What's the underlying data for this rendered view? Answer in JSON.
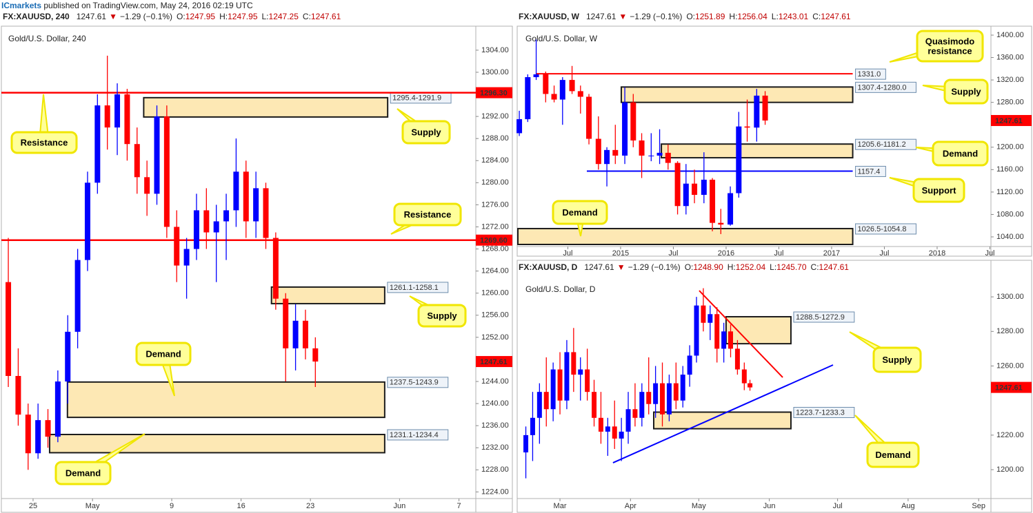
{
  "header": {
    "publisher": "ICmarkets",
    "published": " published on TradingView.com, May 24, 2016 02:19 UTC"
  },
  "chart_data": [
    {
      "type": "candlestick",
      "title": "Gold/U.S. Dollar, 240",
      "info": {
        "symbol": "FX:XAUUSD, 240",
        "price": "1247.61",
        "arrow": "▼",
        "change": "−1.29 (−0.1%)",
        "ohlc": [
          [
            "O:",
            "1247.95"
          ],
          [
            "H:",
            "1247.95"
          ],
          [
            "L:",
            "1247.25"
          ],
          [
            "C:",
            "1247.61"
          ]
        ]
      },
      "up_color": "#0000ff",
      "down_color": "#ff0000",
      "xlim": [
        112.8,
        160.7
      ],
      "xticks": [
        {
          "value": 116,
          "label": "25"
        },
        {
          "value": 122,
          "label": "May"
        },
        {
          "value": 130,
          "label": "9"
        },
        {
          "value": 137,
          "label": "16"
        },
        {
          "value": 144,
          "label": "23"
        },
        {
          "value": 153,
          "label": "Jun"
        },
        {
          "value": 159,
          "label": "7"
        }
      ],
      "ylim": [
        1222.8,
        1308.1
      ],
      "yticks": [
        {
          "value": 1304,
          "label": "1304.00"
        },
        {
          "value": 1300,
          "label": "1300.00"
        },
        {
          "value": 1292,
          "label": "1292.00"
        },
        {
          "value": 1288,
          "label": "1288.00"
        },
        {
          "value": 1284,
          "label": "1284.00"
        },
        {
          "value": 1280,
          "label": "1280.00"
        },
        {
          "value": 1276,
          "label": "1276.00"
        },
        {
          "value": 1272,
          "label": "1272.00"
        },
        {
          "value": 1268,
          "label": "1268.00"
        },
        {
          "value": 1264,
          "label": "1264.00"
        },
        {
          "value": 1260,
          "label": "1260.00"
        },
        {
          "value": 1256,
          "label": "1256.00"
        },
        {
          "value": 1252,
          "label": "1252.00"
        },
        {
          "value": 1244,
          "label": "1244.00"
        },
        {
          "value": 1240,
          "label": "1240.00"
        },
        {
          "value": 1236,
          "label": "1236.00"
        },
        {
          "value": 1232,
          "label": "1232.00"
        },
        {
          "value": 1228,
          "label": "1228.00"
        },
        {
          "value": 1224,
          "label": "1224.00"
        }
      ],
      "candles": {
        "x": [
          113.5,
          114.5,
          115.5,
          116.5,
          117.5,
          118.5,
          119.5,
          120.5,
          121.5,
          122.5,
          123.5,
          124.5,
          125.5,
          126.5,
          127.5,
          128.5,
          129.5,
          130.5,
          131.5,
          132.5,
          133.5,
          134.5,
          135.5,
          136.5,
          137.5,
          138.5,
          139.5,
          140.5,
          141.5,
          142.5,
          143.5,
          144.5
        ],
        "open": [
          1262,
          1245,
          1238,
          1231,
          1237,
          1234,
          1244,
          1253,
          1266,
          1280,
          1294,
          1290,
          1296,
          1287,
          1281,
          1278,
          1292,
          1272,
          1265,
          1268,
          1275,
          1271,
          1273,
          1275,
          1282,
          1273,
          1279,
          1270,
          1259,
          1250,
          1255,
          1250
        ],
        "high": [
          1270,
          1250,
          1240,
          1240,
          1239,
          1246,
          1256,
          1268,
          1282,
          1296,
          1303,
          1298,
          1297,
          1290,
          1284,
          1294,
          1294,
          1275,
          1270,
          1278,
          1279,
          1276,
          1278,
          1288,
          1284,
          1282,
          1280,
          1271,
          1260,
          1258,
          1257,
          1252
        ],
        "low": [
          1243,
          1236,
          1228,
          1230,
          1232,
          1233,
          1240,
          1250,
          1264,
          1278,
          1286,
          1285,
          1284,
          1278,
          1274,
          1276,
          1270,
          1262,
          1259,
          1266,
          1268,
          1262,
          1266,
          1272,
          1270,
          1270,
          1268,
          1257,
          1244,
          1246,
          1248,
          1243
        ],
        "close": [
          1245,
          1238,
          1231,
          1237,
          1234,
          1244,
          1253,
          1266,
          1280,
          1294,
          1290,
          1296,
          1287,
          1281,
          1278,
          1292,
          1272,
          1265,
          1268,
          1275,
          1271,
          1273,
          1275,
          1282,
          1273,
          1279,
          1270,
          1259,
          1250,
          1255,
          1250,
          1247.61
        ]
      },
      "zones": [
        {
          "label": "1295.4-1291.9",
          "high": 1295.4,
          "low": 1291.9,
          "x0": 127.1,
          "x1": 151.8
        },
        {
          "label": "1261.1-1258.1",
          "high": 1261.1,
          "low": 1258.1,
          "x0": 140,
          "x1": 151.5
        },
        {
          "label": "1237.5-1243.9",
          "high": 1243.9,
          "low": 1237.5,
          "x0": 119.4,
          "x1": 151.5
        },
        {
          "label": "1231.1-1234.4",
          "high": 1234.4,
          "low": 1231.1,
          "x0": 117.6,
          "x1": 151.5
        }
      ],
      "levels": [
        {
          "value": 1296.3,
          "label": "1296.30",
          "color": "#ff0000"
        },
        {
          "value": 1269.6,
          "label": "1269.60",
          "color": "#ff0000"
        }
      ],
      "last": {
        "value": 1247.61,
        "label": "1247.61"
      },
      "callouts": [
        [
          "Resistance"
        ],
        [
          "Supply"
        ],
        [
          "Resistance"
        ],
        [
          "Supply"
        ],
        [
          "Demand"
        ],
        [
          "Demand"
        ]
      ]
    },
    {
      "type": "candlestick",
      "title": "Gold/U.S. Dollar, W",
      "info": {
        "symbol": "FX:XAUUSD, W",
        "price": "1247.61",
        "arrow": "▼",
        "change": "−1.29 (−0.1%)",
        "ohlc": [
          [
            "O:",
            "1251.89"
          ],
          [
            "H:",
            "1256.04"
          ],
          [
            "L:",
            "1243.01"
          ],
          [
            "C:",
            "1247.61"
          ]
        ]
      },
      "up_color": "#0000ff",
      "down_color": "#ff0000",
      "xlim": [
        2014.02,
        2018.51
      ],
      "xticks": [
        {
          "value": 2014.5,
          "label": "Jul"
        },
        2015,
        {
          "value": 2015.5,
          "label": "Jul"
        },
        2016,
        {
          "value": 2016.5,
          "label": "Jul"
        },
        2017,
        {
          "value": 2017.5,
          "label": "Jul"
        },
        2018,
        {
          "value": 2018.5,
          "label": "Jul"
        }
      ],
      "ylim": [
        1022.8,
        1413.5
      ],
      "yticks": [
        {
          "value": 1400,
          "label": "1400.00"
        },
        {
          "value": 1360,
          "label": "1360.00"
        },
        {
          "value": 1320,
          "label": "1320.00"
        },
        {
          "value": 1280,
          "label": "1280.00"
        },
        {
          "value": 1200,
          "label": "1200.00"
        },
        {
          "value": 1160,
          "label": "1160.00"
        },
        {
          "value": 1120,
          "label": "1120.00"
        },
        {
          "value": 1080,
          "label": "1080.00"
        },
        {
          "value": 1040,
          "label": "1040.00"
        }
      ],
      "candles": {
        "x": [
          2014.04,
          2014.12,
          2014.2,
          2014.29,
          2014.37,
          2014.45,
          2014.54,
          2014.62,
          2014.7,
          2014.79,
          2014.87,
          2014.95,
          2015.04,
          2015.12,
          2015.2,
          2015.29,
          2015.37,
          2015.45,
          2015.54,
          2015.62,
          2015.7,
          2015.79,
          2015.87,
          2015.95,
          2016.04,
          2016.12,
          2016.2,
          2016.29,
          2016.37
        ],
        "open": [
          1225,
          1250,
          1325,
          1330,
          1295,
          1285,
          1320,
          1300,
          1290,
          1215,
          1170,
          1195,
          1185,
          1280,
          1212,
          1185,
          1185,
          1190,
          1172,
          1095,
          1135,
          1115,
          1142,
          1065,
          1062,
          1118,
          1237,
          1235,
          1292
        ],
        "high": [
          1265,
          1330,
          1392,
          1335,
          1310,
          1325,
          1345,
          1310,
          1295,
          1255,
          1200,
          1240,
          1307,
          1295,
          1225,
          1225,
          1232,
          1205,
          1175,
          1170,
          1160,
          1191,
          1145,
          1090,
          1130,
          1263,
          1285,
          1304,
          1300
        ],
        "low": [
          1220,
          1245,
          1320,
          1280,
          1280,
          1240,
          1295,
          1260,
          1205,
          1160,
          1130,
          1170,
          1170,
          1200,
          1145,
          1175,
          1170,
          1160,
          1080,
          1080,
          1100,
          1100,
          1050,
          1045,
          1060,
          1110,
          1210,
          1210,
          1240
        ],
        "close": [
          1250,
          1325,
          1330,
          1295,
          1285,
          1320,
          1300,
          1290,
          1215,
          1170,
          1195,
          1185,
          1280,
          1212,
          1185,
          1185,
          1190,
          1172,
          1095,
          1135,
          1115,
          1142,
          1065,
          1062,
          1118,
          1237,
          1235,
          1292,
          1247.61
        ]
      },
      "zones": [
        {
          "label": "1307.4-1280.0",
          "high": 1307.4,
          "low": 1280,
          "x0": 2015,
          "x1": 2017.2
        },
        {
          "label": "1205.6-1181.2",
          "high": 1205.6,
          "low": 1181.2,
          "x0": 2015.38,
          "x1": 2017.2
        },
        {
          "label": "1026.5-1054.8",
          "high": 1054.8,
          "low": 1026.5,
          "x0": 2014.02,
          "x1": 2017.2
        }
      ],
      "levels": [
        {
          "value": 1331,
          "label": "1331.0",
          "color": "#ff0000",
          "x0": 2014.2,
          "x1": 2017.2
        },
        {
          "value": 1157.4,
          "label": "1157.4",
          "color": "#0000ff",
          "x0": 2014.68,
          "x1": 2017.2
        }
      ],
      "last": {
        "value": 1247.61,
        "label": "1247.61"
      },
      "callouts": [
        [
          "Quasimodo",
          "resistance"
        ],
        [
          "Supply"
        ],
        [
          "Demand"
        ],
        [
          "Support"
        ],
        [
          "Demand"
        ]
      ]
    },
    {
      "type": "candlestick",
      "title": "Gold/U.S. Dollar, D",
      "info": {
        "symbol": "FX:XAUUSD, D",
        "price": "1247.61",
        "arrow": "▼",
        "change": "−1.29 (−0.1%)",
        "ohlc": [
          [
            "O:",
            "1248.90"
          ],
          [
            "H:",
            "1252.04"
          ],
          [
            "L:",
            "1245.70"
          ],
          [
            "C:",
            "1247.61"
          ]
        ]
      },
      "up_color": "#0000ff",
      "down_color": "#ff0000",
      "xlim": [
        42.2,
        250.4
      ],
      "xticks": [
        {
          "value": 61,
          "label": "Mar"
        },
        {
          "value": 92,
          "label": "Apr"
        },
        {
          "value": 122,
          "label": "May"
        },
        {
          "value": 153,
          "label": "Jun"
        },
        {
          "value": 183,
          "label": "Jul"
        },
        {
          "value": 214,
          "label": "Aug"
        },
        {
          "value": 245,
          "label": "Sep"
        }
      ],
      "ylim": [
        1183.3,
        1311.6
      ],
      "yticks": [
        {
          "value": 1300,
          "label": "1300.00"
        },
        {
          "value": 1280,
          "label": "1280.00"
        },
        {
          "value": 1260,
          "label": "1260.00"
        },
        {
          "value": 1220,
          "label": "1220.00"
        },
        {
          "value": 1200,
          "label": "1200.00"
        }
      ],
      "candles": {
        "x": [
          46,
          49,
          52,
          55,
          58,
          61,
          64,
          67,
          70,
          73,
          76,
          79,
          82,
          85,
          88,
          91,
          94,
          97,
          100,
          103,
          106,
          109,
          112,
          115,
          118,
          121,
          124,
          127,
          130,
          133,
          136,
          139,
          142,
          144.5
        ],
        "open": [
          1210,
          1220,
          1230,
          1245,
          1235,
          1258,
          1240,
          1268,
          1255,
          1258,
          1245,
          1230,
          1222,
          1225,
          1218,
          1222,
          1235,
          1230,
          1245,
          1238,
          1250,
          1232,
          1250,
          1240,
          1255,
          1266,
          1295,
          1285,
          1290,
          1270,
          1280,
          1270,
          1258,
          1250
        ],
        "high": [
          1225,
          1245,
          1250,
          1265,
          1262,
          1268,
          1275,
          1282,
          1265,
          1270,
          1252,
          1245,
          1230,
          1240,
          1230,
          1245,
          1250,
          1250,
          1265,
          1260,
          1262,
          1255,
          1262,
          1260,
          1272,
          1300,
          1305,
          1295,
          1294,
          1285,
          1284,
          1275,
          1262,
          1252
        ],
        "low": [
          1195,
          1205,
          1215,
          1225,
          1228,
          1232,
          1235,
          1245,
          1240,
          1240,
          1225,
          1215,
          1208,
          1212,
          1205,
          1215,
          1225,
          1225,
          1232,
          1230,
          1225,
          1228,
          1235,
          1236,
          1248,
          1262,
          1280,
          1275,
          1262,
          1262,
          1265,
          1255,
          1246,
          1245.7
        ],
        "close": [
          1220,
          1230,
          1245,
          1235,
          1258,
          1240,
          1268,
          1255,
          1258,
          1245,
          1230,
          1222,
          1225,
          1218,
          1222,
          1235,
          1230,
          1245,
          1238,
          1250,
          1232,
          1250,
          1240,
          1255,
          1266,
          1295,
          1285,
          1290,
          1270,
          1280,
          1270,
          1258,
          1250,
          1247.61
        ]
      },
      "zones": [
        {
          "label": "1288.5-1272.9",
          "high": 1288.5,
          "low": 1272.9,
          "x0": 133.7,
          "x1": 162.5
        },
        {
          "label": "1223.7-1233.3",
          "high": 1233.3,
          "low": 1223.7,
          "x0": 101.9,
          "x1": 162.5
        }
      ],
      "trendlines": [
        {
          "color": "#ff0000",
          "x": [
            122.2,
            158.9
          ],
          "y": [
            1303.6,
            1253.4
          ]
        },
        {
          "color": "#0000ff",
          "x": [
            84.3,
            181
          ],
          "y": [
            1204,
            1260.6
          ]
        }
      ],
      "last": {
        "value": 1247.61,
        "label": "1247.61"
      },
      "callouts": [
        [
          "Supply"
        ],
        [
          "Demand"
        ]
      ]
    }
  ]
}
